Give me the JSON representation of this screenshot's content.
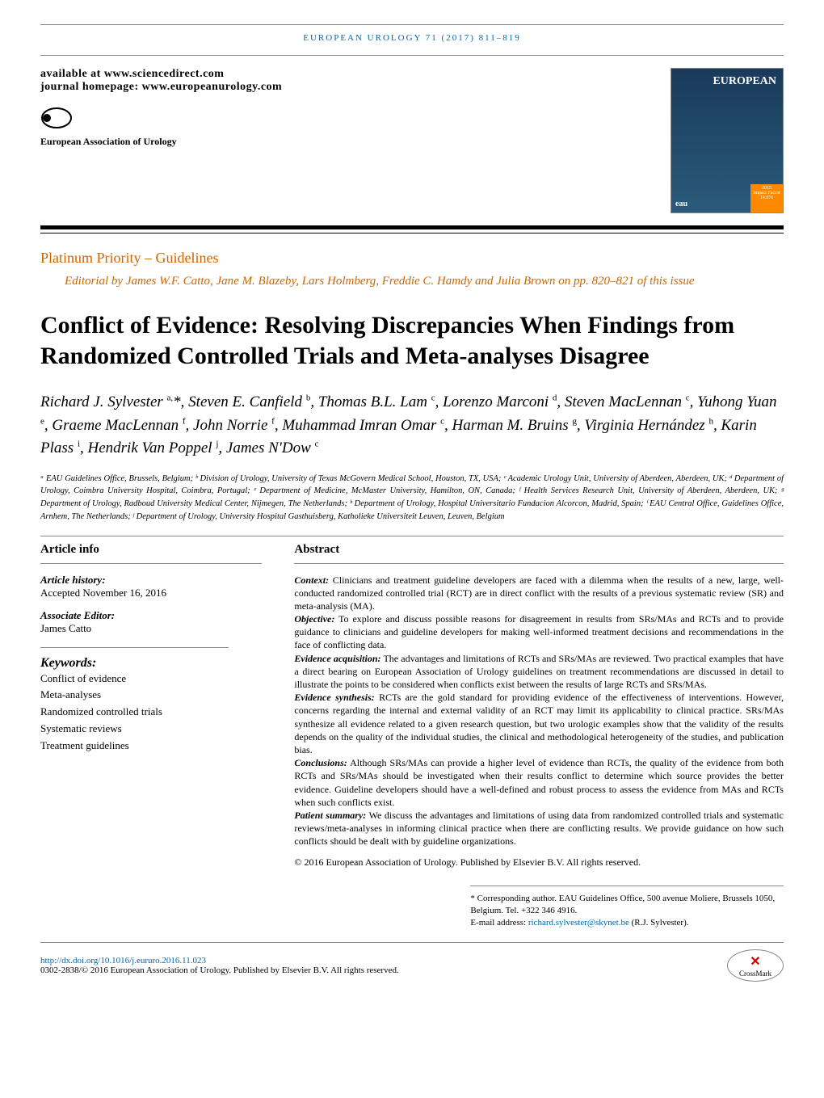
{
  "journal_header": "EUROPEAN UROLOGY 71 (2017) 811–819",
  "availability": {
    "line1": "available at www.sciencedirect.com",
    "line2": "journal homepage: www.europeanurology.com"
  },
  "cover": {
    "title": "EUROPEAN",
    "badge_year": "2015",
    "badge_label": "Impact Factor",
    "badge_value": "14.976",
    "logo": "eau"
  },
  "logo": {
    "main": "eau",
    "subtitle": "European Association of Urology"
  },
  "section": {
    "label": "Platinum Priority – Guidelines",
    "editorial": "Editorial by James W.F. Catto, Jane M. Blazeby, Lars Holmberg, Freddie C. Hamdy and Julia Brown on pp. 820–821 of this issue"
  },
  "title": "Conflict of Evidence: Resolving Discrepancies When Findings from Randomized Controlled Trials and Meta-analyses Disagree",
  "authors_html": "Richard J. Sylvester <sup>a,</sup>*, Steven E. Canfield <sup>b</sup>, Thomas B.L. Lam <sup>c</sup>, Lorenzo Marconi <sup>d</sup>, Steven MacLennan <sup>c</sup>, Yuhong Yuan <sup>e</sup>, Graeme MacLennan <sup>f</sup>, John Norrie <sup>f</sup>, Muhammad Imran Omar <sup>c</sup>, Harman M. Bruins <sup>g</sup>, Virginia Hernández <sup>h</sup>, Karin Plass <sup>i</sup>, Hendrik Van Poppel <sup>j</sup>, James N'Dow <sup>c</sup>",
  "affiliations": "ᵃ EAU Guidelines Office, Brussels, Belgium; ᵇ Division of Urology, University of Texas McGovern Medical School, Houston, TX, USA; ᶜ Academic Urology Unit, University of Aberdeen, Aberdeen, UK; ᵈ Department of Urology, Coimbra University Hospital, Coimbra, Portugal; ᵉ Department of Medicine, McMaster University, Hamilton, ON, Canada; ᶠ Health Services Research Unit, University of Aberdeen, Aberdeen, UK; ᵍ Department of Urology, Radboud University Medical Center, Nijmegen, The Netherlands; ʰ Department of Urology, Hospital Universitario Fundacion Alcorcon, Madrid, Spain; ⁱ EAU Central Office, Guidelines Office, Arnhem, The Netherlands; ʲ Department of Urology, University Hospital Gasthuisberg, Katholieke Universiteit Leuven, Leuven, Belgium",
  "article_info": {
    "header": "Article info",
    "history_label": "Article history:",
    "history_value": "Accepted November 16, 2016",
    "editor_label": "Associate Editor:",
    "editor_value": "James Catto",
    "keywords_label": "Keywords:",
    "keywords": [
      "Conflict of evidence",
      "Meta-analyses",
      "Randomized controlled trials",
      "Systematic reviews",
      "Treatment guidelines"
    ]
  },
  "abstract": {
    "header": "Abstract",
    "context_label": "Context:",
    "context": "Clinicians and treatment guideline developers are faced with a dilemma when the results of a new, large, well-conducted randomized controlled trial (RCT) are in direct conflict with the results of a previous systematic review (SR) and meta-analysis (MA).",
    "objective_label": "Objective:",
    "objective": "To explore and discuss possible reasons for disagreement in results from SRs/MAs and RCTs and to provide guidance to clinicians and guideline developers for making well-informed treatment decisions and recommendations in the face of conflicting data.",
    "evidence_acq_label": "Evidence acquisition:",
    "evidence_acq": "The advantages and limitations of RCTs and SRs/MAs are reviewed. Two practical examples that have a direct bearing on European Association of Urology guidelines on treatment recommendations are discussed in detail to illustrate the points to be considered when conflicts exist between the results of large RCTs and SRs/MAs.",
    "evidence_syn_label": "Evidence synthesis:",
    "evidence_syn": "RCTs are the gold standard for providing evidence of the effectiveness of interventions. However, concerns regarding the internal and external validity of an RCT may limit its applicability to clinical practice. SRs/MAs synthesize all evidence related to a given research question, but two urologic examples show that the validity of the results depends on the quality of the individual studies, the clinical and methodological heterogeneity of the studies, and publication bias.",
    "conclusions_label": "Conclusions:",
    "conclusions": "Although SRs/MAs can provide a higher level of evidence than RCTs, the quality of the evidence from both RCTs and SRs/MAs should be investigated when their results conflict to determine which source provides the better evidence. Guideline developers should have a well-defined and robust process to assess the evidence from MAs and RCTs when such conflicts exist.",
    "patient_label": "Patient summary:",
    "patient": "We discuss the advantages and limitations of using data from randomized controlled trials and systematic reviews/meta-analyses in informing clinical practice when there are conflicting results. We provide guidance on how such conflicts should be dealt with by guideline organizations.",
    "copyright": "© 2016 European Association of Urology. Published by Elsevier B.V. All rights reserved."
  },
  "correspondence": {
    "text": "* Corresponding author. EAU Guidelines Office, 500 avenue Moliere, Brussels 1050, Belgium. Tel. +322 346 4916.",
    "email_label": "E-mail address:",
    "email": "richard.sylvester@skynet.be",
    "email_suffix": "(R.J. Sylvester)."
  },
  "footer": {
    "doi": "http://dx.doi.org/10.1016/j.eururo.2016.11.023",
    "issn_line": "0302-2838/© 2016 European Association of Urology. Published by Elsevier B.V. All rights reserved.",
    "crossmark": "CrossMark"
  },
  "colors": {
    "link": "#0066aa",
    "accent": "#cc6600",
    "text": "#000000",
    "rule": "#888888",
    "badge": "#ff8800"
  },
  "typography": {
    "title_fontsize": 30,
    "authors_fontsize": 19,
    "body_fontsize": 12,
    "section_fontsize": 18
  }
}
